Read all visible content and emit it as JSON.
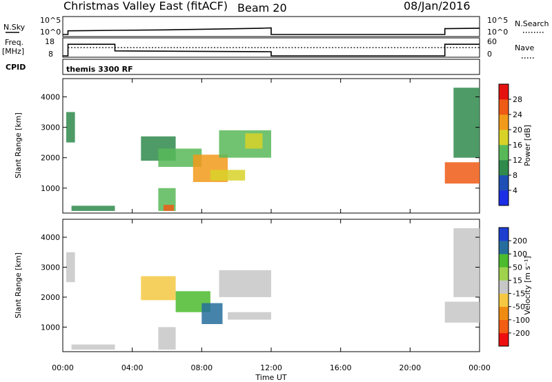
{
  "header": {
    "station": "Christmas Valley East (fitACF)",
    "beam": "Beam 20",
    "date": "08/Jan/2016"
  },
  "colors": {
    "power_scale": [
      "#1b2ee6",
      "#1f4fb4",
      "#2f8a4c",
      "#58b858",
      "#d8d228",
      "#f29a1a",
      "#ef5a14",
      "#e3120f"
    ],
    "velocity_scale": [
      "#ee1010",
      "#f35d14",
      "#f08b12",
      "#f5c842",
      "#c7c7c7",
      "#9fd24d",
      "#4cbb2e",
      "#266d9c",
      "#1d3fd0"
    ]
  },
  "chart_data": [
    {
      "type": "line",
      "panel": "nsky-nsearch",
      "left_label": "N.Sky",
      "right_label": "N.Search",
      "left_ticks": [
        "10^5",
        "10^0"
      ],
      "right_ticks": [
        "10^5",
        "10^0"
      ],
      "series": [
        {
          "name": "N.Sky",
          "x": [
            0.0,
            0.3,
            0.3,
            3,
            6,
            9,
            11.5,
            12.0,
            12.0,
            22.0,
            22.0,
            24.0
          ],
          "y": [
            0,
            0,
            0.22,
            0.25,
            0.28,
            0.33,
            0.38,
            0.4,
            0,
            0,
            0.35,
            0.38
          ]
        }
      ]
    },
    {
      "type": "line",
      "panel": "freq-nave",
      "left_label": "Freq.",
      "left_unit": "[MHz]",
      "right_label": "Nave",
      "left_ticks": [
        "18",
        "8"
      ],
      "right_ticks": [
        "60",
        "0"
      ],
      "series": [
        {
          "name": "Freq.",
          "x": [
            0.0,
            0.3,
            0.3,
            3.0,
            3.0,
            12.0,
            12.0,
            22.0,
            22.0,
            24.0
          ],
          "y": [
            8,
            8,
            15,
            15,
            11,
            10.5,
            8,
            8,
            15,
            15
          ]
        },
        {
          "name": "Nave",
          "x": [
            0.3,
            12.0,
            22.0,
            24.0
          ],
          "y": [
            30,
            30,
            30,
            30
          ]
        }
      ]
    },
    {
      "type": "table",
      "panel": "cpid",
      "label": "CPID",
      "value": "themis 3300 RF"
    },
    {
      "type": "heatmap",
      "panel": "power",
      "ylabel": "Slant Range [km]",
      "xlim": [
        0,
        24
      ],
      "ylim": [
        180,
        4600
      ],
      "y_ticks": [
        1000,
        2000,
        3000,
        4000
      ],
      "colorbar_label": "Power [dB]",
      "colorbar_ticks": [
        4,
        8,
        12,
        16,
        20,
        24,
        28
      ],
      "colorbar_range": [
        0,
        32
      ],
      "patches": [
        {
          "t": [
            0.2,
            0.7
          ],
          "r": [
            2500,
            3500
          ],
          "value": 9
        },
        {
          "t": [
            0.5,
            3.0
          ],
          "r": [
            250,
            420
          ],
          "value": 8
        },
        {
          "t": [
            4.5,
            6.5
          ],
          "r": [
            1900,
            2700
          ],
          "value": 10
        },
        {
          "t": [
            5.5,
            8.0
          ],
          "r": [
            1700,
            2300
          ],
          "value": 12
        },
        {
          "t": [
            7.5,
            9.5
          ],
          "r": [
            1200,
            2100
          ],
          "value": 22
        },
        {
          "t": [
            8.5,
            10.5
          ],
          "r": [
            1250,
            1600
          ],
          "value": 16
        },
        {
          "t": [
            9.0,
            12.0
          ],
          "r": [
            2000,
            2900
          ],
          "value": 14
        },
        {
          "t": [
            10.5,
            11.5
          ],
          "r": [
            2300,
            2800
          ],
          "value": 18
        },
        {
          "t": [
            5.5,
            6.5
          ],
          "r": [
            250,
            1000
          ],
          "value": 12
        },
        {
          "t": [
            5.8,
            6.4
          ],
          "r": [
            250,
            450
          ],
          "value": 27
        },
        {
          "t": [
            22.0,
            24.0
          ],
          "r": [
            1150,
            1850
          ],
          "value": 27
        },
        {
          "t": [
            22.5,
            24.0
          ],
          "r": [
            2000,
            4300
          ],
          "value": 10
        }
      ]
    },
    {
      "type": "heatmap",
      "panel": "velocity",
      "ylabel": "Slant Range [km]",
      "xlabel": "Time UT",
      "xlim": [
        0,
        24
      ],
      "ylim": [
        180,
        4600
      ],
      "y_ticks": [
        1000,
        2000,
        3000,
        4000
      ],
      "x_ticks": [
        "00:00",
        "04:00",
        "08:00",
        "12:00",
        "16:00",
        "20:00",
        "00:00"
      ],
      "x_tick_hours": [
        0,
        4,
        8,
        12,
        16,
        20,
        24
      ],
      "colorbar_label": "Velocity [m s⁻¹]",
      "colorbar_ticks": [
        "-200",
        "-100",
        "-50",
        "-15",
        "15",
        "50",
        "100",
        "200"
      ],
      "patches": [
        {
          "t": [
            0.2,
            0.7
          ],
          "r": [
            2500,
            3500
          ],
          "value": 0
        },
        {
          "t": [
            0.5,
            3.0
          ],
          "r": [
            250,
            420
          ],
          "value": 0
        },
        {
          "t": [
            4.5,
            6.5
          ],
          "r": [
            1900,
            2700
          ],
          "value": -30
        },
        {
          "t": [
            6.5,
            8.5
          ],
          "r": [
            1500,
            2200
          ],
          "value": 60
        },
        {
          "t": [
            8.0,
            9.2
          ],
          "r": [
            1100,
            1800
          ],
          "value": 120
        },
        {
          "t": [
            9.0,
            12.0
          ],
          "r": [
            2000,
            2900
          ],
          "value": 0
        },
        {
          "t": [
            9.5,
            12.0
          ],
          "r": [
            1250,
            1500
          ],
          "value": 0
        },
        {
          "t": [
            5.5,
            6.5
          ],
          "r": [
            250,
            1000
          ],
          "value": 0
        },
        {
          "t": [
            22.0,
            24.0
          ],
          "r": [
            1150,
            1850
          ],
          "value": 0
        },
        {
          "t": [
            22.5,
            24.0
          ],
          "r": [
            2000,
            4300
          ],
          "value": 0
        }
      ]
    }
  ]
}
